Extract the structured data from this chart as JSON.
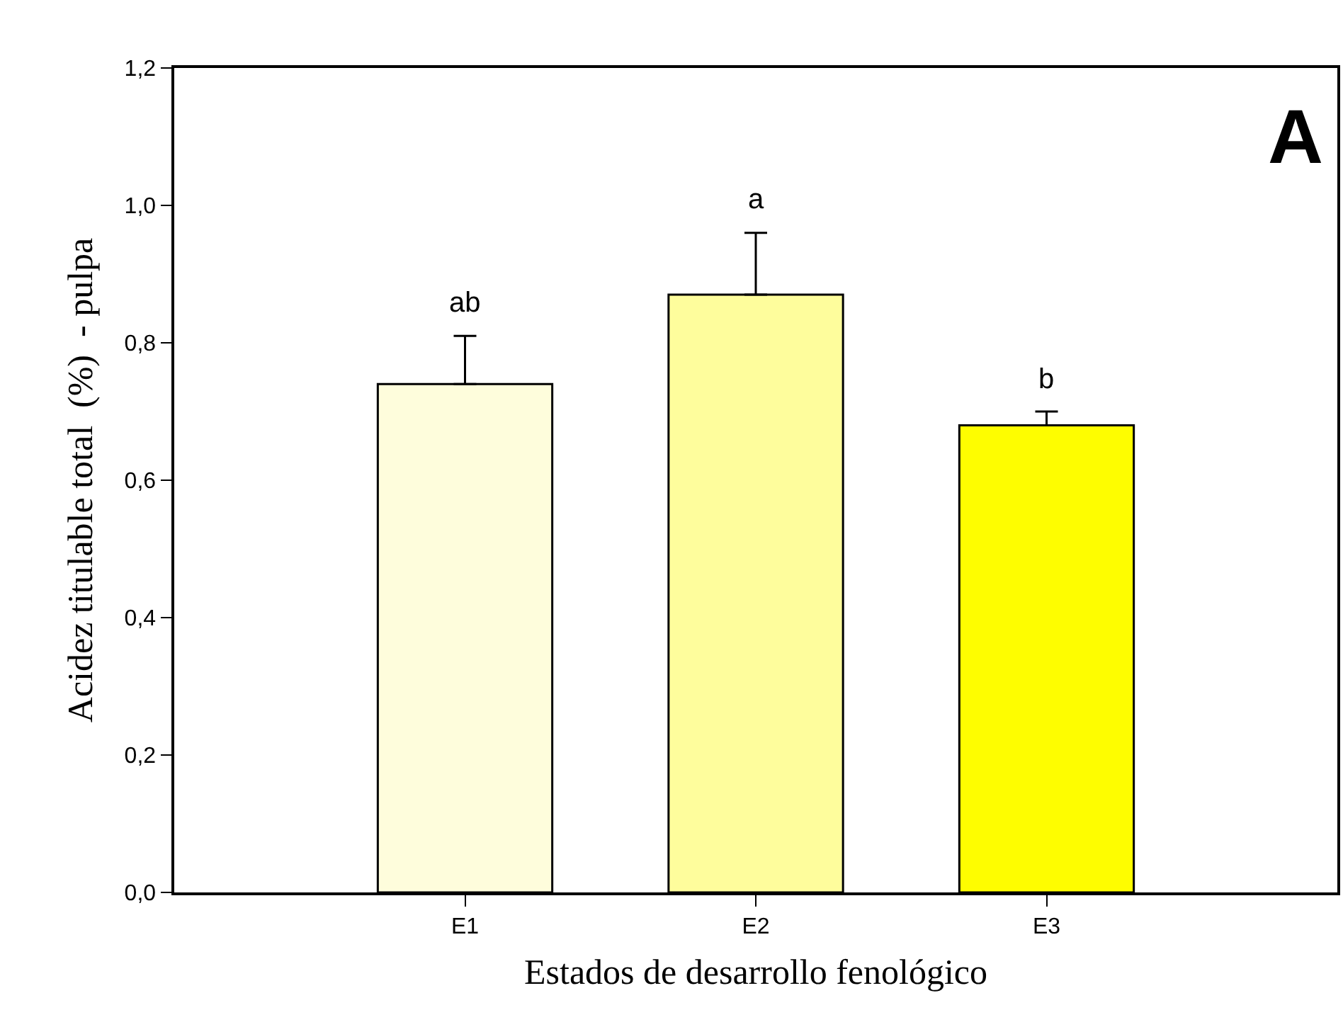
{
  "chart_data": {
    "type": "bar",
    "xlabel": "Estados de desarrollo fenológico",
    "ylabel": "Acidez titulable total  (%)  - pulpa",
    "categories": [
      "E1",
      "E2",
      "E3"
    ],
    "values": [
      0.74,
      0.87,
      0.68
    ],
    "colors": [
      "#fefddc",
      "#fefd9c",
      "#fefd00"
    ],
    "errors": [
      [
        0.74,
        0.81
      ],
      [
        0.87,
        0.96
      ],
      [
        0.68,
        0.7
      ]
    ],
    "ylim": [
      0,
      1.2
    ],
    "yticks": [
      {
        "value": 0,
        "label": "0,0"
      },
      {
        "value": 0.2,
        "label": "0,2"
      },
      {
        "value": 0.4,
        "label": "0,4"
      },
      {
        "value": 0.6,
        "label": "0,6"
      },
      {
        "value": 0.8,
        "label": "0,8"
      },
      {
        "value": 1.0,
        "label": "1,0"
      },
      {
        "value": 1.2,
        "label": "1,2"
      }
    ],
    "legend": false,
    "annotations": [
      {
        "text": "ab",
        "x": "E1",
        "y": 0.81
      },
      {
        "text": "a",
        "x": "E2",
        "y": 0.96
      },
      {
        "text": "b",
        "x": "E3",
        "y": 0.7
      },
      "A"
    ]
  }
}
